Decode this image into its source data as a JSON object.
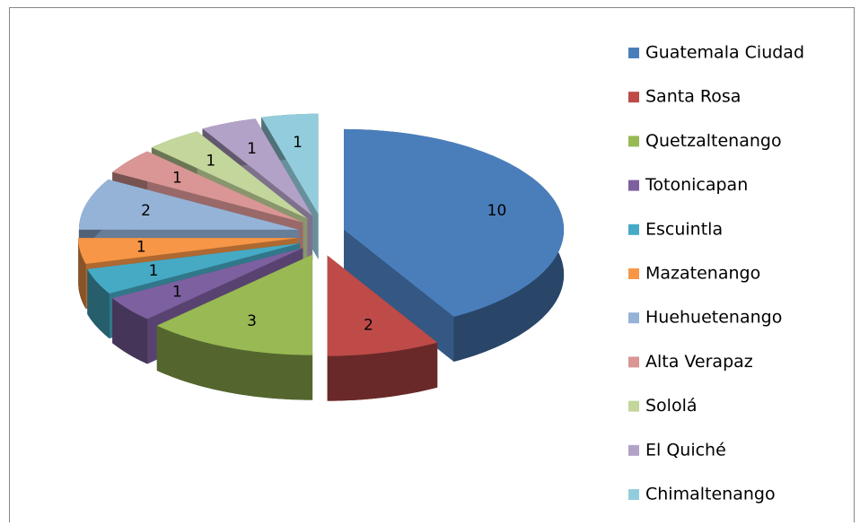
{
  "chart_data": {
    "type": "pie",
    "categories": [
      "Guatemala Ciudad",
      "Santa Rosa",
      "Quetzaltenango",
      "Totonicapan",
      "Escuintla",
      "Mazatenango",
      "Huehuetenango",
      "Alta Verapaz",
      "Sololá",
      "El Quiché",
      "Chimaltenango"
    ],
    "values": [
      10,
      2,
      3,
      1,
      1,
      1,
      2,
      1,
      1,
      1,
      1
    ],
    "colors": [
      "#4a7ebb",
      "#be4b48",
      "#98b954",
      "#7d60a0",
      "#46aac5",
      "#f79646",
      "#95b3d7",
      "#d99694",
      "#c3d69b",
      "#b3a2c7",
      "#93cddd"
    ],
    "legend": "right"
  }
}
